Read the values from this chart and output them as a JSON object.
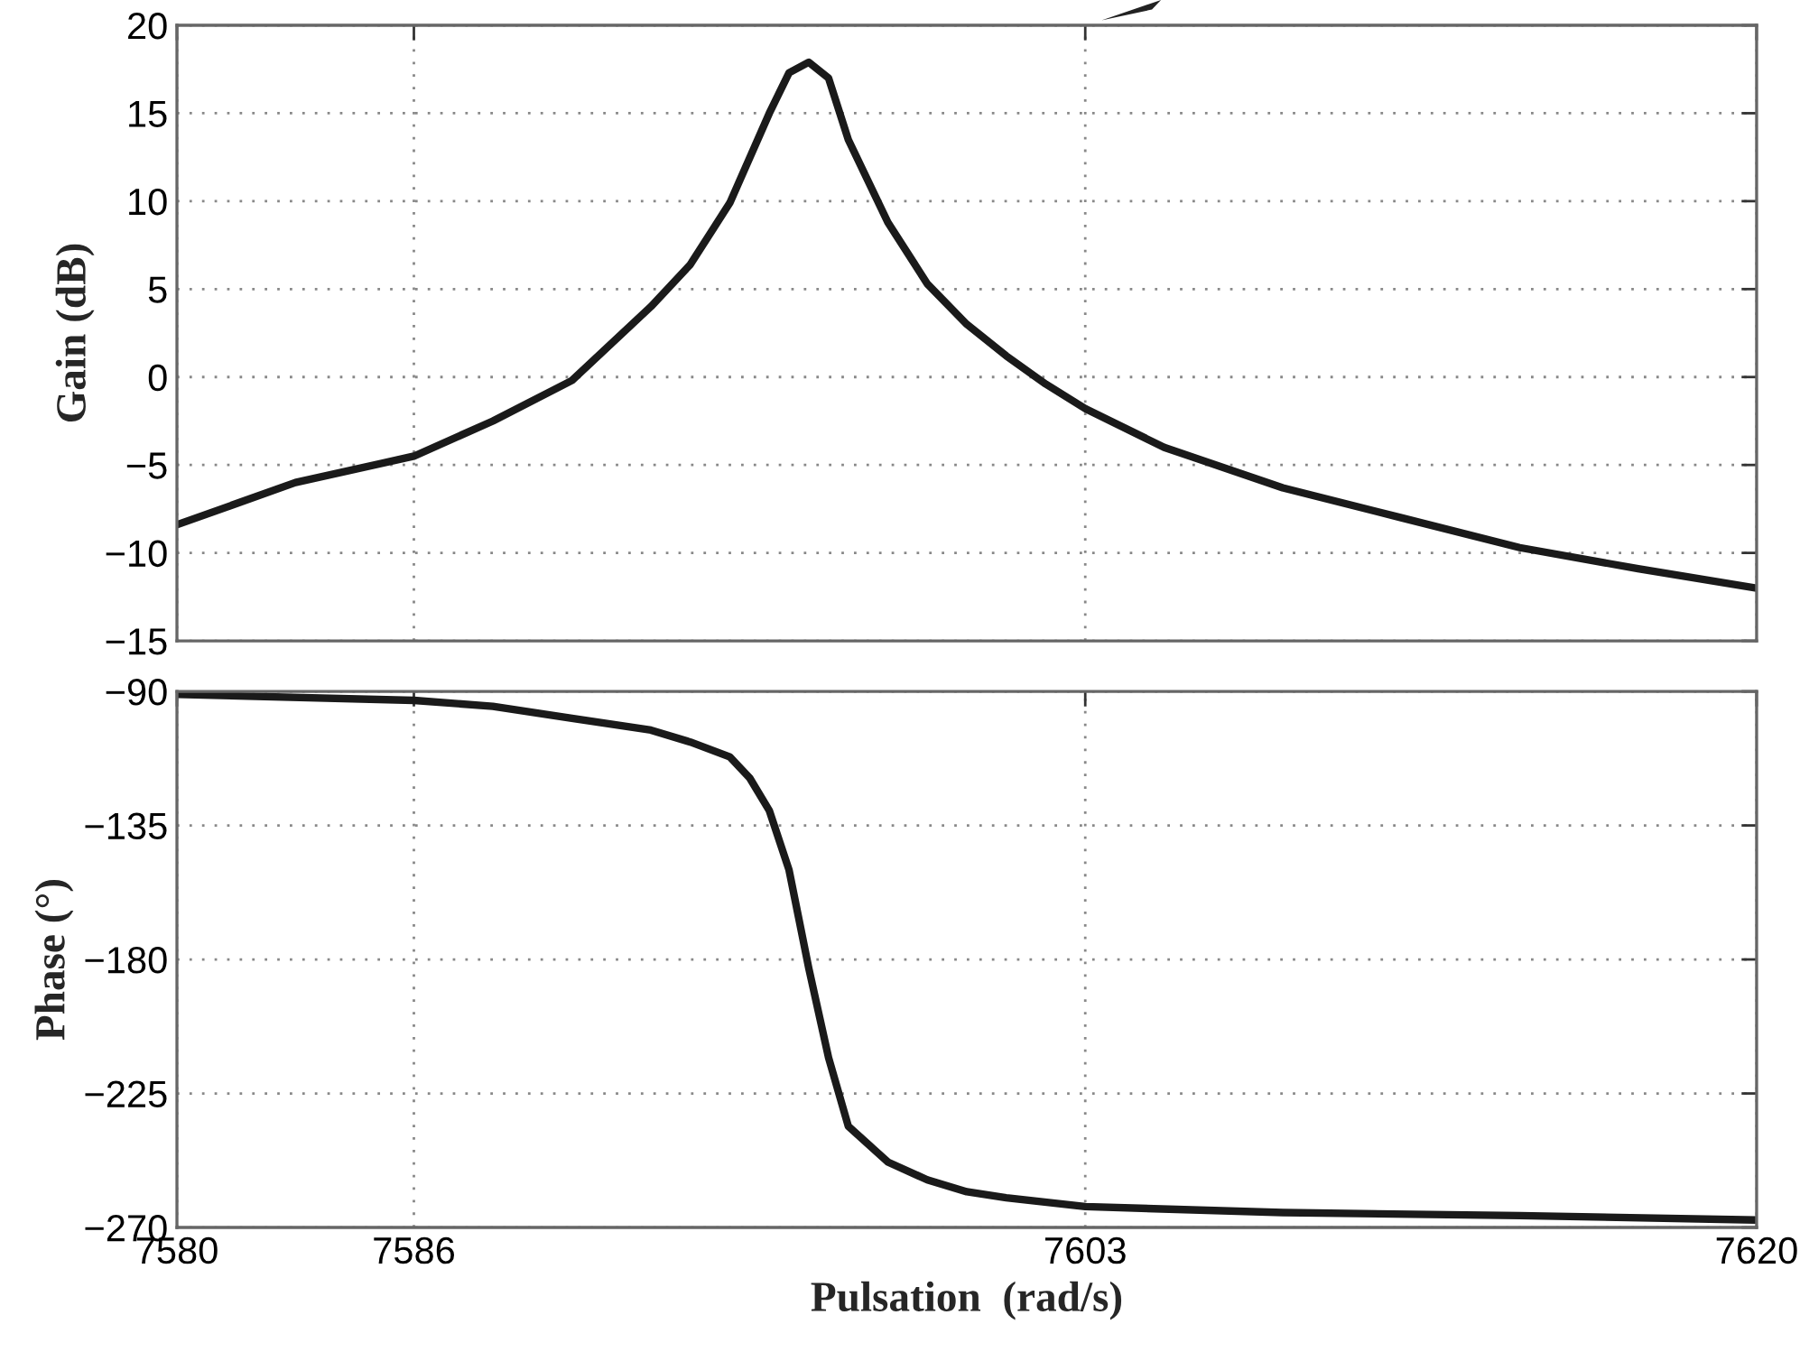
{
  "chart_data": [
    {
      "type": "line",
      "ylabel": "Gain (dB)",
      "xlim": [
        7580,
        7620
      ],
      "xticks": [
        7580,
        7586,
        7603,
        7620
      ],
      "ylim": [
        -15,
        20
      ],
      "yticks": [
        -15,
        -10,
        -5,
        0,
        5,
        10,
        15,
        20
      ],
      "grid": true,
      "tick_labels": "y",
      "line_style": "solid",
      "x": [
        7580,
        7583,
        7586,
        7588,
        7590,
        7592,
        7593,
        7594,
        7595,
        7595.5,
        7596,
        7596.5,
        7597,
        7598,
        7599,
        7600,
        7601,
        7602,
        7603,
        7605,
        7608,
        7611,
        7614,
        7617,
        7620
      ],
      "series": [
        {
          "color": "#1a1a1a",
          "values": [
            -8.4,
            -6.0,
            -4.5,
            -2.5,
            -0.2,
            4.0,
            6.4,
            9.9,
            15.0,
            17.3,
            17.9,
            17.0,
            13.5,
            8.8,
            5.3,
            3.0,
            1.2,
            -0.4,
            -1.8,
            -4.0,
            -6.3,
            -8.0,
            -9.7,
            -10.9,
            -12.0
          ]
        }
      ]
    },
    {
      "type": "line",
      "ylabel": "Phase (°)",
      "xlabel": "Pulsation  (rad/s)",
      "xlim": [
        7580,
        7620
      ],
      "xticks": [
        7580,
        7586,
        7603,
        7620
      ],
      "ylim": [
        -270,
        -90
      ],
      "yticks": [
        -270,
        -225,
        -180,
        -135,
        -90
      ],
      "grid": true,
      "line_style": "solid",
      "x": [
        7580,
        7586,
        7588,
        7590,
        7592,
        7593,
        7594,
        7594.5,
        7595,
        7595.5,
        7596,
        7596.5,
        7597,
        7597.5,
        7598,
        7599,
        7600,
        7601,
        7603,
        7608,
        7614,
        7620
      ],
      "series": [
        {
          "color": "#1a1a1a",
          "values": [
            -91,
            -93,
            -95,
            -99,
            -103,
            -107,
            -112,
            -119,
            -130,
            -150,
            -183,
            -213,
            -236,
            -242,
            -248,
            -254,
            -258,
            -260,
            -263,
            -265,
            -266,
            -267.5
          ]
        }
      ]
    }
  ]
}
